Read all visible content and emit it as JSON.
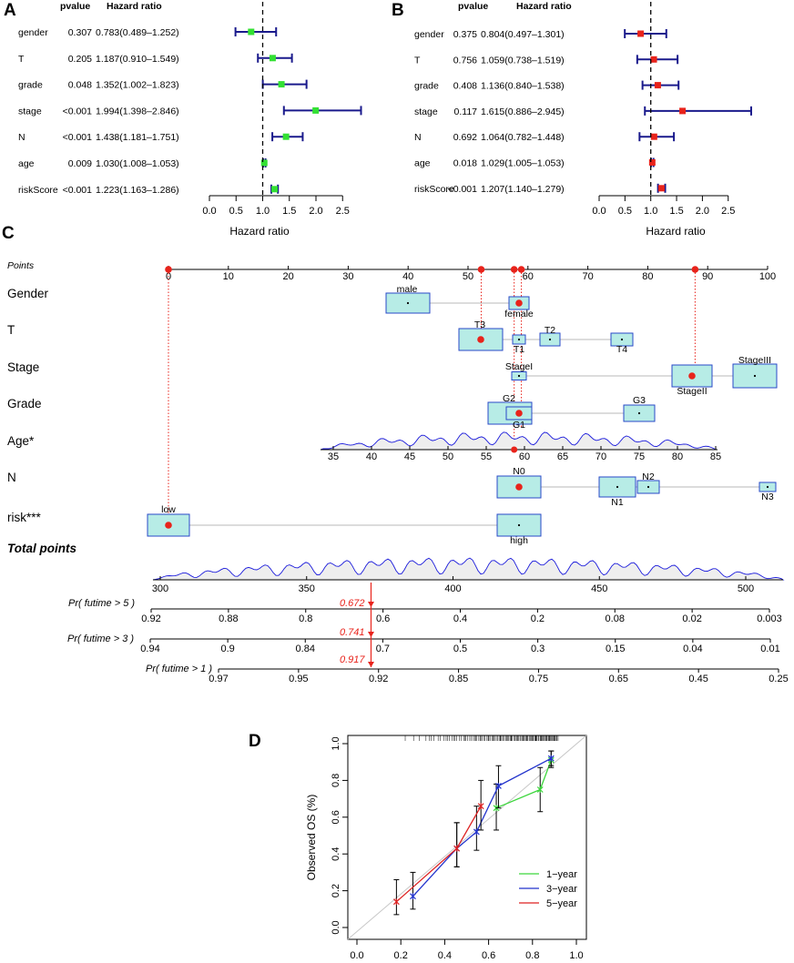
{
  "panels": {
    "A": "A",
    "B": "B",
    "C": "C",
    "D": "D"
  },
  "colors": {
    "navy": "#1a1a8c",
    "green": "#33e033",
    "red_marker": "#e8231b",
    "box_fill": "#b7ece6",
    "box_stroke": "#2948c8",
    "calib_1yr": "#3cd63c",
    "calib_3yr": "#2233cc",
    "calib_5yr": "#dd2222"
  },
  "forest_A": {
    "header_p": "pvalue",
    "header_hr": "Hazard ratio",
    "xlabel": "Hazard ratio",
    "ticks": [
      0.0,
      0.5,
      1.0,
      1.5,
      2.0,
      2.5
    ],
    "tick_labels": [
      "0.0",
      "0.5",
      "1.0",
      "1.5",
      "2.0",
      "2.5"
    ],
    "rows": [
      {
        "name": "gender",
        "p": "0.307",
        "hr_text": "0.783(0.489–1.252)",
        "hr": 0.783,
        "lo": 0.489,
        "hi": 1.252
      },
      {
        "name": "T",
        "p": "0.205",
        "hr_text": "1.187(0.910–1.549)",
        "hr": 1.187,
        "lo": 0.91,
        "hi": 1.549
      },
      {
        "name": "grade",
        "p": "0.048",
        "hr_text": "1.352(1.002–1.823)",
        "hr": 1.352,
        "lo": 1.002,
        "hi": 1.823
      },
      {
        "name": "stage",
        "p": "<0.001",
        "hr_text": "1.994(1.398–2.846)",
        "hr": 1.994,
        "lo": 1.398,
        "hi": 2.846
      },
      {
        "name": "N",
        "p": "<0.001",
        "hr_text": "1.438(1.181–1.751)",
        "hr": 1.438,
        "lo": 1.181,
        "hi": 1.751
      },
      {
        "name": "age",
        "p": "0.009",
        "hr_text": "1.030(1.008–1.053)",
        "hr": 1.03,
        "lo": 1.008,
        "hi": 1.053
      },
      {
        "name": "riskScore",
        "p": "<0.001",
        "hr_text": "1.223(1.163–1.286)",
        "hr": 1.223,
        "lo": 1.163,
        "hi": 1.286
      }
    ]
  },
  "forest_B": {
    "header_p": "pvalue",
    "header_hr": "Hazard ratio",
    "xlabel": "Hazard ratio",
    "ticks": [
      0.0,
      0.5,
      1.0,
      1.5,
      2.0,
      2.5
    ],
    "tick_labels": [
      "0.0",
      "0.5",
      "1.0",
      "1.5",
      "2.0",
      "2.5"
    ],
    "rows": [
      {
        "name": "gender",
        "p": "0.375",
        "hr_text": "0.804(0.497–1.301)",
        "hr": 0.804,
        "lo": 0.497,
        "hi": 1.301
      },
      {
        "name": "T",
        "p": "0.756",
        "hr_text": "1.059(0.738–1.519)",
        "hr": 1.059,
        "lo": 0.738,
        "hi": 1.519
      },
      {
        "name": "grade",
        "p": "0.408",
        "hr_text": "1.136(0.840–1.538)",
        "hr": 1.136,
        "lo": 0.84,
        "hi": 1.538
      },
      {
        "name": "stage",
        "p": "0.117",
        "hr_text": "1.615(0.886–2.945)",
        "hr": 1.615,
        "lo": 0.886,
        "hi": 2.945
      },
      {
        "name": "N",
        "p": "0.692",
        "hr_text": "1.064(0.782–1.448)",
        "hr": 1.064,
        "lo": 0.782,
        "hi": 1.448
      },
      {
        "name": "age",
        "p": "0.018",
        "hr_text": "1.029(1.005–1.053)",
        "hr": 1.029,
        "lo": 1.005,
        "hi": 1.053
      },
      {
        "name": "riskScore",
        "p": "<0.001",
        "hr_text": "1.207(1.140–1.279)",
        "hr": 1.207,
        "lo": 1.14,
        "hi": 1.279
      }
    ]
  },
  "nomogram": {
    "points_label": "Points",
    "points_ticks": [
      "0",
      "10",
      "20",
      "30",
      "40",
      "50",
      "60",
      "70",
      "80",
      "90",
      "100"
    ],
    "variable_labels": [
      "Gender",
      "T",
      "Stage",
      "Grade",
      "Age*",
      "N",
      "risk***"
    ],
    "category_labels": {
      "gender": [
        "male",
        "female"
      ],
      "t": [
        "T3",
        "T2",
        "T1",
        "T4"
      ],
      "stage": [
        "StageI",
        "StageII",
        "StageIII"
      ],
      "grade": [
        "G2",
        "G1",
        "G3"
      ],
      "n": [
        "N0",
        "N2",
        "N1",
        "N3"
      ],
      "risk": [
        "low",
        "high"
      ]
    },
    "age_ticks": [
      "35",
      "40",
      "45",
      "50",
      "55",
      "60",
      "65",
      "70",
      "75",
      "80",
      "85"
    ],
    "total_points_label": "Total points",
    "total_ticks": [
      "300",
      "350",
      "400",
      "450",
      "500"
    ],
    "total_value": "372",
    "pr5_label": "Pr( futime > 5 )",
    "pr5_ticks": [
      "0.92",
      "0.88",
      "0.8",
      "0.6",
      "0.4",
      "0.2",
      "0.08",
      "0.02",
      "0.003"
    ],
    "pr5_value": "0.672",
    "pr3_label": "Pr( futime > 3 )",
    "pr3_ticks": [
      "0.94",
      "0.9",
      "0.84",
      "0.7",
      "0.5",
      "0.3",
      "0.15",
      "0.04",
      "0.01"
    ],
    "pr3_value": "0.741",
    "pr1_label": "Pr( futime > 1 )",
    "pr1_ticks": [
      "0.97",
      "0.95",
      "0.92",
      "0.85",
      "0.75",
      "0.65",
      "0.45",
      "0.25"
    ],
    "pr1_value": "0.917"
  },
  "chart_data": [
    {
      "type": "forest",
      "panel": "A",
      "xlabel": "Hazard ratio",
      "reference_line": 1.0,
      "xlim": [
        0,
        2.5
      ]
    },
    {
      "type": "forest",
      "panel": "B",
      "xlabel": "Hazard ratio",
      "reference_line": 1.0,
      "xlim": [
        0,
        2.5
      ]
    },
    {
      "type": "nomogram",
      "panel": "C",
      "points_range": [
        0,
        100
      ],
      "total_points_range": [
        300,
        500
      ],
      "selected_total": 372,
      "predictions": {
        "Pr(futime > 5)": 0.672,
        "Pr(futime > 3)": 0.741,
        "Pr(futime > 1)": 0.917
      }
    },
    {
      "type": "line",
      "panel": "D",
      "title": "",
      "xlabel": "",
      "ylabel": "Observed OS (%)",
      "xlim": [
        0,
        1
      ],
      "ylim": [
        0,
        1
      ],
      "xticks": [
        "0.0",
        "0.2",
        "0.4",
        "0.6",
        "0.8",
        "1.0"
      ],
      "yticks": [
        "0.0",
        "0.2",
        "0.4",
        "0.6",
        "0.8",
        "1.0"
      ],
      "legend": {
        "position": "bottom-right",
        "entries": [
          "1−year",
          "3−year",
          "5−year"
        ]
      },
      "series": [
        {
          "name": "1−year",
          "color": "#3cd63c",
          "x": [
            0.635,
            0.835,
            0.885
          ],
          "y": [
            0.65,
            0.75,
            0.91
          ],
          "lo": [
            0.53,
            0.63,
            0.87
          ],
          "hi": [
            0.78,
            0.87,
            0.96
          ]
        },
        {
          "name": "3−year",
          "color": "#2233cc",
          "x": [
            0.255,
            0.455,
            0.545,
            0.645,
            0.885
          ],
          "y": [
            0.17,
            0.43,
            0.52,
            0.77,
            0.92
          ],
          "lo": [
            0.1,
            0.33,
            0.42,
            0.65,
            0.88
          ],
          "hi": [
            0.3,
            0.57,
            0.66,
            0.88,
            0.96
          ]
        },
        {
          "name": "5−year",
          "color": "#dd2222",
          "x": [
            0.18,
            0.455,
            0.565
          ],
          "y": [
            0.14,
            0.43,
            0.66
          ],
          "lo": [
            0.07,
            0.33,
            0.53
          ],
          "hi": [
            0.26,
            0.57,
            0.8
          ]
        }
      ]
    }
  ]
}
